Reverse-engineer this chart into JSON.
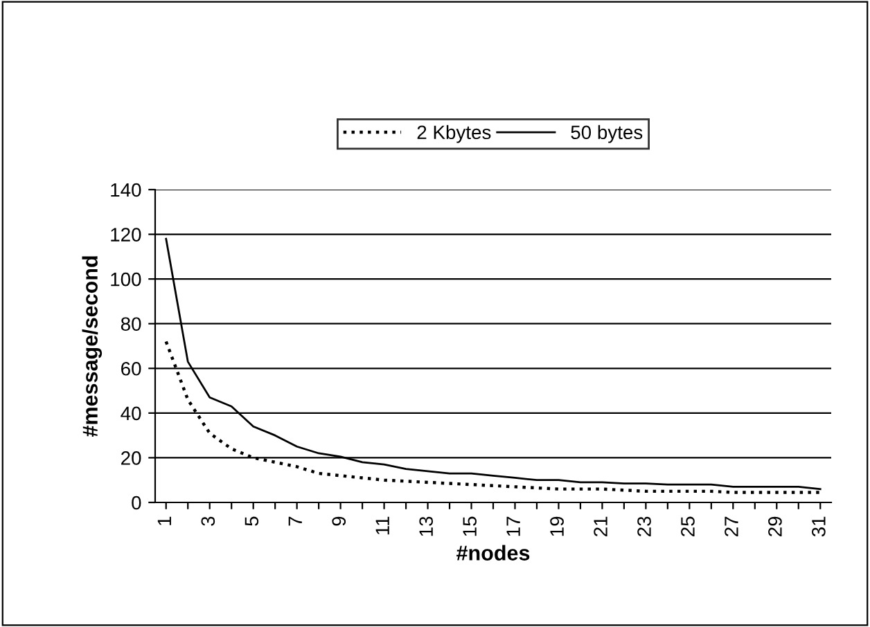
{
  "chart_data": {
    "type": "line",
    "xlabel": "#nodes",
    "ylabel": "#message/second",
    "categories": [
      "1",
      null,
      "3",
      null,
      "5",
      null,
      "7",
      null,
      "9",
      null,
      "11",
      null,
      "13",
      null,
      "15",
      null,
      "17",
      null,
      "19",
      null,
      "21",
      null,
      "23",
      null,
      "25",
      null,
      "27",
      null,
      "29",
      null,
      "31"
    ],
    "series": [
      {
        "name": "2 Kbytes",
        "color": "#000000",
        "line_style": "dotted",
        "values": [
          72,
          46,
          31,
          24,
          20,
          18,
          16,
          13,
          12,
          11,
          10,
          9.5,
          9,
          8.5,
          8,
          7.5,
          7,
          6.5,
          6,
          6,
          6,
          5.5,
          5,
          5,
          5,
          5,
          4.5,
          4.5,
          4.5,
          4.5,
          4.5
        ]
      },
      {
        "name": "50 bytes",
        "color": "#000000",
        "line_style": "solid",
        "values": [
          118,
          63,
          47,
          43,
          34,
          30,
          25,
          22,
          20.5,
          18,
          17,
          15,
          14,
          13,
          13,
          12,
          11,
          10,
          10,
          9,
          9,
          8.5,
          8.5,
          8,
          8,
          8,
          7,
          7,
          7,
          7,
          6
        ]
      }
    ],
    "ylim": [
      0,
      140
    ],
    "yticks": [
      0,
      20,
      40,
      60,
      80,
      100,
      120,
      140
    ],
    "grid": "y",
    "legend": "top",
    "marker": "none"
  }
}
